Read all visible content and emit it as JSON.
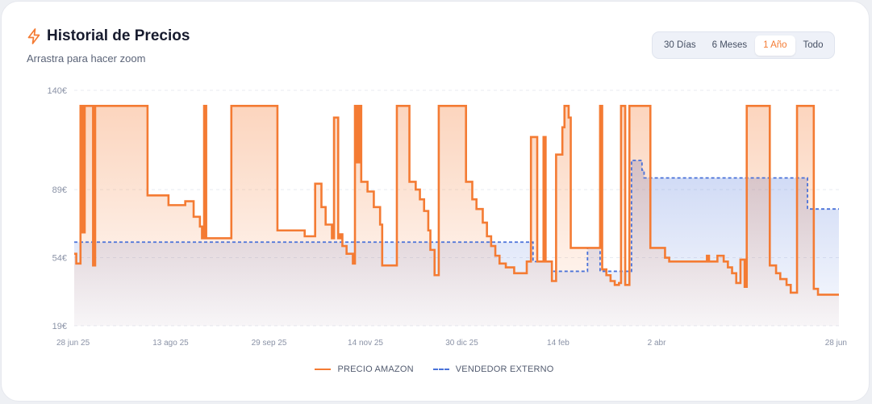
{
  "header": {
    "title": "Historial de Precios",
    "subtitle": "Arrastra para hacer zoom"
  },
  "range_buttons": [
    {
      "label": "30 Días",
      "active": false
    },
    {
      "label": "6 Meses",
      "active": false
    },
    {
      "label": "1 Año",
      "active": true
    },
    {
      "label": "Todo",
      "active": false
    }
  ],
  "legend": {
    "amazon_label": "PRECIO AMAZON",
    "external_label": "VENDEDOR EXTERNO"
  },
  "colors": {
    "amazon": "#f47b33",
    "external": "#4a72d9",
    "accent": "#f47b33"
  },
  "icons": {
    "title_icon": "lightning-bolt-icon"
  },
  "chart_data": {
    "type": "line",
    "x_type": "date",
    "xlim": [
      "2025-06-28",
      "2026-06-28"
    ],
    "ylim": [
      19,
      140
    ],
    "y_ticks": [
      19,
      54,
      89,
      140
    ],
    "y_tick_labels": [
      "19€",
      "54€",
      "89€",
      "140€"
    ],
    "x_ticks": [
      "2025-06-28",
      "2025-08-13",
      "2025-09-29",
      "2025-11-14",
      "2025-12-30",
      "2026-02-14",
      "2026-04-02",
      "2026-06-28"
    ],
    "x_tick_labels": [
      "28 jun 25",
      "13 ago 25",
      "29 sep 25",
      "14 nov 25",
      "30 dic 25",
      "14 feb",
      "2 abr",
      "28 jun"
    ],
    "grid": true,
    "legend_position": "bottom",
    "step": true,
    "series": [
      {
        "name": "PRECIO AMAZON",
        "style": "solid-fill",
        "points": [
          [
            "2025-06-28",
            56
          ],
          [
            "2025-06-29",
            51
          ],
          [
            "2025-07-01",
            132
          ],
          [
            "2025-07-02",
            67
          ],
          [
            "2025-07-03",
            132
          ],
          [
            "2025-07-05",
            132
          ],
          [
            "2025-07-07",
            50
          ],
          [
            "2025-07-08",
            132
          ],
          [
            "2025-08-01",
            132
          ],
          [
            "2025-08-02",
            86
          ],
          [
            "2025-08-11",
            86
          ],
          [
            "2025-08-12",
            81
          ],
          [
            "2025-08-20",
            83
          ],
          [
            "2025-08-24",
            75
          ],
          [
            "2025-08-27",
            70
          ],
          [
            "2025-08-28",
            64
          ],
          [
            "2025-08-29",
            132
          ],
          [
            "2025-08-30",
            64
          ],
          [
            "2025-09-11",
            132
          ],
          [
            "2025-10-03",
            68
          ],
          [
            "2025-10-16",
            65
          ],
          [
            "2025-10-21",
            92
          ],
          [
            "2025-10-24",
            80
          ],
          [
            "2025-10-26",
            71
          ],
          [
            "2025-10-29",
            64
          ],
          [
            "2025-10-30",
            126
          ],
          [
            "2025-11-01",
            64
          ],
          [
            "2025-11-02",
            66
          ],
          [
            "2025-11-03",
            60
          ],
          [
            "2025-11-05",
            56
          ],
          [
            "2025-11-08",
            51
          ],
          [
            "2025-11-09",
            132
          ],
          [
            "2025-11-10",
            103
          ],
          [
            "2025-11-11",
            132
          ],
          [
            "2025-11-12",
            93
          ],
          [
            "2025-11-15",
            88
          ],
          [
            "2025-11-18",
            80
          ],
          [
            "2025-11-21",
            71
          ],
          [
            "2025-11-22",
            50
          ],
          [
            "2025-11-29",
            132
          ],
          [
            "2025-12-05",
            93
          ],
          [
            "2025-12-08",
            89
          ],
          [
            "2025-12-10",
            84
          ],
          [
            "2025-12-12",
            78
          ],
          [
            "2025-12-14",
            68
          ],
          [
            "2025-12-15",
            58
          ],
          [
            "2025-12-17",
            45
          ],
          [
            "2025-12-19",
            132
          ],
          [
            "2026-01-01",
            93
          ],
          [
            "2026-01-04",
            84
          ],
          [
            "2026-01-06",
            79
          ],
          [
            "2026-01-09",
            72
          ],
          [
            "2026-01-11",
            65
          ],
          [
            "2026-01-13",
            60
          ],
          [
            "2026-01-15",
            55
          ],
          [
            "2026-01-17",
            51
          ],
          [
            "2026-01-20",
            49
          ],
          [
            "2026-01-24",
            46
          ],
          [
            "2026-01-30",
            52
          ],
          [
            "2026-02-01",
            116
          ],
          [
            "2026-02-04",
            52
          ],
          [
            "2026-02-07",
            116
          ],
          [
            "2026-02-08",
            52
          ],
          [
            "2026-02-11",
            42
          ],
          [
            "2026-02-13",
            107
          ],
          [
            "2026-02-16",
            121
          ],
          [
            "2026-02-17",
            132
          ],
          [
            "2026-02-19",
            126
          ],
          [
            "2026-02-20",
            59
          ],
          [
            "2026-03-06",
            132
          ],
          [
            "2026-03-07",
            48
          ],
          [
            "2026-03-09",
            45
          ],
          [
            "2026-03-11",
            42
          ],
          [
            "2026-03-13",
            40
          ],
          [
            "2026-03-15",
            41
          ],
          [
            "2026-03-16",
            132
          ],
          [
            "2026-03-18",
            40
          ],
          [
            "2026-03-20",
            132
          ],
          [
            "2026-03-30",
            59
          ],
          [
            "2026-04-06",
            54
          ],
          [
            "2026-04-08",
            52
          ],
          [
            "2026-04-25",
            52
          ],
          [
            "2026-04-26",
            55
          ],
          [
            "2026-04-27",
            52
          ],
          [
            "2026-05-01",
            55
          ],
          [
            "2026-05-04",
            52
          ],
          [
            "2026-05-06",
            49
          ],
          [
            "2026-05-08",
            46
          ],
          [
            "2026-05-10",
            41
          ],
          [
            "2026-05-12",
            53
          ],
          [
            "2026-05-14",
            39
          ],
          [
            "2026-05-15",
            132
          ],
          [
            "2026-05-26",
            50
          ],
          [
            "2026-05-29",
            46
          ],
          [
            "2026-05-31",
            43
          ],
          [
            "2026-06-03",
            40
          ],
          [
            "2026-06-05",
            36
          ],
          [
            "2026-06-08",
            132
          ],
          [
            "2026-06-16",
            38
          ],
          [
            "2026-06-18",
            35
          ],
          [
            "2026-06-28",
            35
          ]
        ]
      },
      {
        "name": "VENDEDOR EXTERNO",
        "style": "dashed-fill",
        "points": [
          [
            "2025-06-28",
            62
          ],
          [
            "2026-02-01",
            62
          ],
          [
            "2026-02-02",
            52
          ],
          [
            "2026-02-10",
            52
          ],
          [
            "2026-02-11",
            47
          ],
          [
            "2026-02-27",
            47
          ],
          [
            "2026-02-28",
            59
          ],
          [
            "2026-03-05",
            59
          ],
          [
            "2026-03-06",
            47
          ],
          [
            "2026-03-20",
            47
          ],
          [
            "2026-03-21",
            104
          ],
          [
            "2026-03-26",
            99
          ],
          [
            "2026-03-27",
            95
          ],
          [
            "2026-06-12",
            95
          ],
          [
            "2026-06-13",
            79
          ],
          [
            "2026-06-28",
            79
          ]
        ]
      }
    ]
  }
}
